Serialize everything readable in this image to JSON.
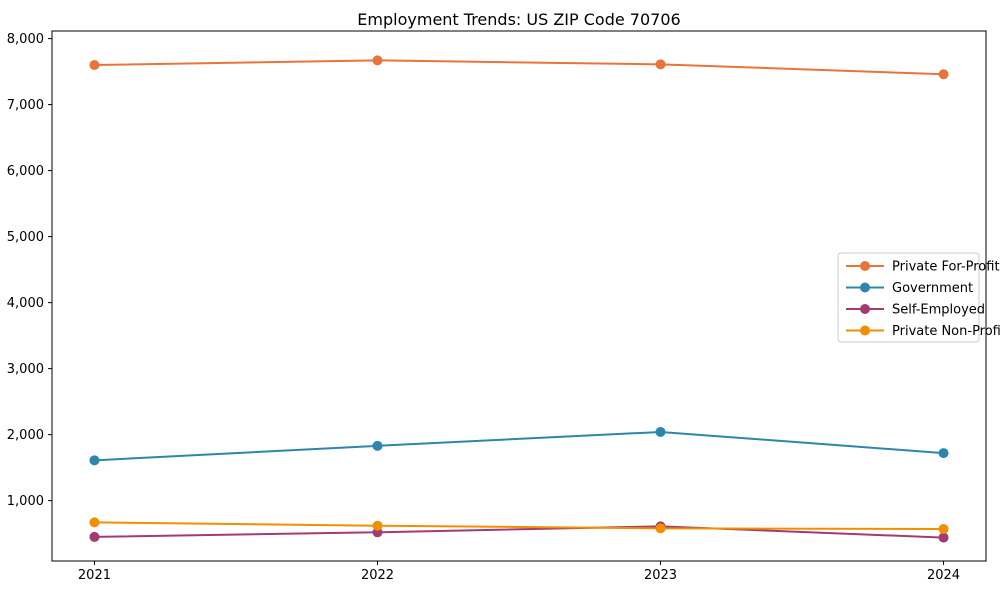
{
  "chart_data": {
    "type": "line",
    "title": "Employment Trends: US ZIP Code 70706",
    "x": [
      2021,
      2022,
      2023,
      2024
    ],
    "x_tick_labels": [
      "2021",
      "2022",
      "2023",
      "2024"
    ],
    "series": [
      {
        "name": "Private For-Profit",
        "color": "#E8743B",
        "values": [
          7600,
          7670,
          7610,
          7460
        ]
      },
      {
        "name": "Government",
        "color": "#2E86AB",
        "values": [
          1610,
          1830,
          2040,
          1720
        ]
      },
      {
        "name": "Self-Employed",
        "color": "#A23B72",
        "values": [
          450,
          520,
          610,
          440
        ]
      },
      {
        "name": "Private Non-Profit",
        "color": "#F18F01",
        "values": [
          670,
          620,
          580,
          570
        ]
      }
    ],
    "y_ticks": [
      {
        "value": 1000,
        "label": "1,000"
      },
      {
        "value": 2000,
        "label": "2,000"
      },
      {
        "value": 3000,
        "label": "3,000"
      },
      {
        "value": 4000,
        "label": "4,000"
      },
      {
        "value": 5000,
        "label": "5,000"
      },
      {
        "value": 6000,
        "label": "6,000"
      },
      {
        "value": 7000,
        "label": "7,000"
      },
      {
        "value": 8000,
        "label": "8,000"
      }
    ],
    "ylim": [
      85,
      8115
    ],
    "xlim": [
      2020.85,
      2024.15
    ],
    "xlabel": "",
    "ylabel": "",
    "grid": false,
    "marker": "circle",
    "legend_position": "center-right",
    "axis_color": "#000000",
    "legend_border_color": "#cccccc",
    "background_color": "#ffffff"
  }
}
